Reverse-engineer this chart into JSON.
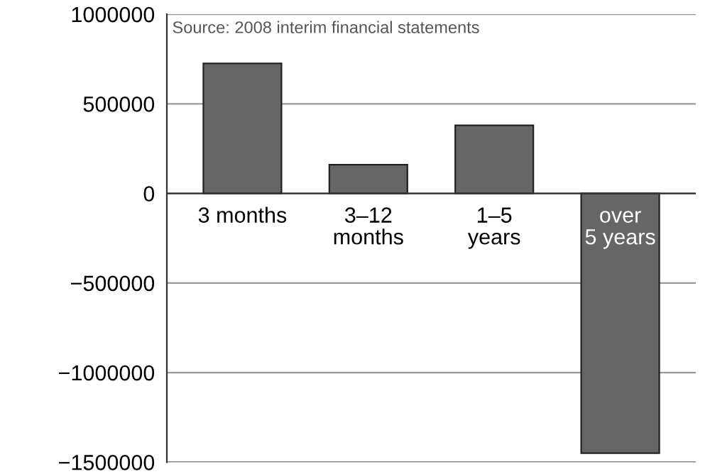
{
  "chart_data": {
    "type": "bar",
    "categories": [
      "3 months",
      "3–12\nmonths",
      "1–5\nyears",
      "over\n5 years"
    ],
    "values": [
      725000,
      160000,
      380000,
      -1450000
    ],
    "color": "#666666",
    "ylim": [
      -1500000,
      1000000
    ],
    "yticks": [
      1000000,
      500000,
      0,
      {
        "value": -500000,
        "label": "−500000"
      },
      {
        "value": -1000000,
        "label": "−1000000"
      },
      {
        "value": -1500000,
        "label": "−1500000"
      }
    ],
    "grid": "y",
    "annotations": [
      "Source: 2008 interim financial statements"
    ]
  }
}
